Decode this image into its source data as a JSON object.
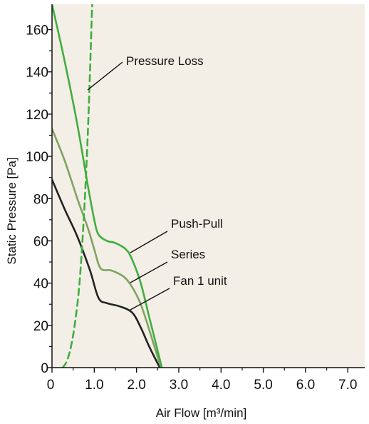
{
  "chart_data": {
    "type": "line",
    "xlabel": "Air Flow [m³/min]",
    "ylabel": "Static Pressure [Pa]",
    "xlim": [
      0,
      7.4
    ],
    "ylim": [
      0,
      172
    ],
    "x_ticks": [
      0,
      1.0,
      2.0,
      3.0,
      4.0,
      5.0,
      6.0,
      7.0
    ],
    "x_tick_labels": [
      "0",
      "1.0",
      "2.0",
      "3.0",
      "4.0",
      "5.0",
      "6.0",
      "7.0"
    ],
    "y_ticks": [
      0,
      20,
      40,
      60,
      80,
      100,
      120,
      140,
      160
    ],
    "y_tick_labels": [
      "0",
      "20",
      "40",
      "60",
      "80",
      "100",
      "120",
      "140",
      "160"
    ],
    "grid": false,
    "colors": {
      "plot_background": "#f3eee6",
      "fan_1_unit": "#222222",
      "series": "#7fa35f",
      "push_pull": "#3fae3f",
      "pressure_loss": "#3fae3f"
    },
    "series": [
      {
        "name": "Fan 1 unit",
        "x": [
          0.0,
          0.3,
          0.6,
          0.9,
          1.1,
          1.3,
          1.6,
          1.9,
          2.1,
          2.3,
          2.5,
          2.55
        ],
        "y": [
          89,
          75,
          62,
          46,
          33,
          30.5,
          29,
          26,
          19,
          10,
          2,
          0
        ]
      },
      {
        "name": "Series",
        "x": [
          0.0,
          0.3,
          0.6,
          0.85,
          1.0,
          1.15,
          1.4,
          1.7,
          1.9,
          2.1,
          2.3,
          2.5,
          2.58
        ],
        "y": [
          113,
          98,
          80,
          66,
          56,
          47,
          46,
          43,
          38,
          30,
          18,
          5,
          0
        ]
      },
      {
        "name": "Push-Pull",
        "x": [
          0.0,
          0.3,
          0.6,
          0.85,
          1.0,
          1.1,
          1.3,
          1.5,
          1.75,
          1.9,
          2.1,
          2.3,
          2.5,
          2.6
        ],
        "y": [
          172,
          145,
          115,
          86,
          70,
          63,
          60,
          59,
          56,
          51,
          40,
          24,
          8,
          0
        ]
      },
      {
        "name": "Pressure Loss",
        "x": [
          0.25,
          0.35,
          0.45,
          0.55,
          0.65,
          0.75,
          0.85,
          0.95
        ],
        "y": [
          0,
          3,
          10,
          22,
          40,
          70,
          112,
          172
        ]
      }
    ],
    "annotations": [
      {
        "text": "Pressure Loss",
        "target_series": "Pressure Loss"
      },
      {
        "text": "Push-Pull",
        "target_series": "Push-Pull"
      },
      {
        "text": "Series",
        "target_series": "Series"
      },
      {
        "text": "Fan 1 unit",
        "target_series": "Fan 1 unit"
      }
    ]
  }
}
